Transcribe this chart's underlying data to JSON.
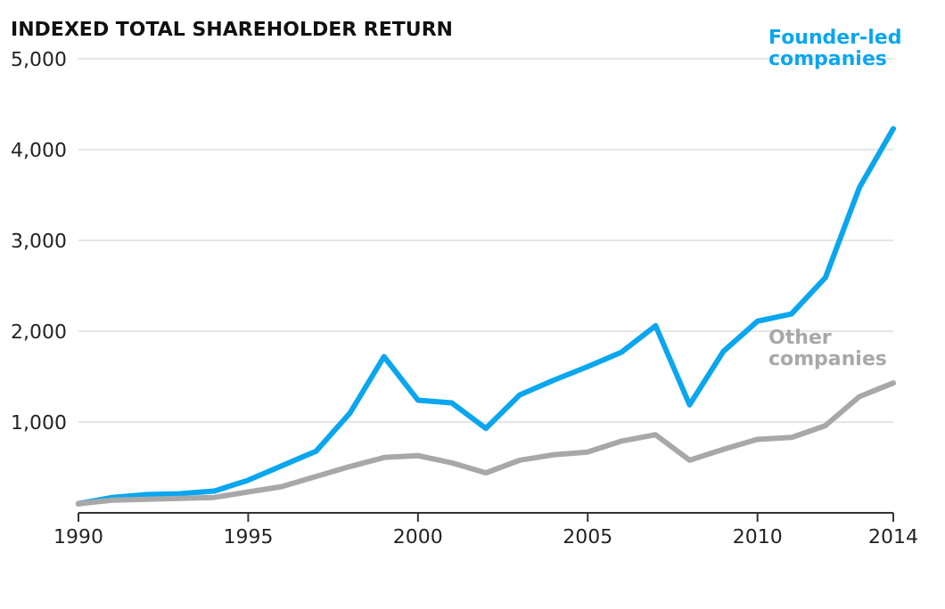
{
  "chart_data": {
    "type": "line",
    "title": "INDEXED TOTAL SHAREHOLDER RETURN",
    "x": [
      1990,
      1991,
      1992,
      1993,
      1994,
      1995,
      1996,
      1997,
      1998,
      1999,
      2000,
      2001,
      2002,
      2003,
      2004,
      2005,
      2006,
      2007,
      2008,
      2009,
      2010,
      2011,
      2012,
      2013,
      2014
    ],
    "series": [
      {
        "name": "Founder-led companies",
        "color": "#0aa6ef",
        "values": [
          100,
          170,
          200,
          210,
          240,
          360,
          520,
          680,
          1100,
          1720,
          1240,
          1210,
          930,
          1300,
          1460,
          1610,
          1770,
          2060,
          1190,
          1780,
          2110,
          2190,
          2590,
          3580,
          4230
        ]
      },
      {
        "name": "Other companies",
        "color": "#a8a8a8",
        "values": [
          100,
          140,
          150,
          160,
          170,
          230,
          290,
          400,
          510,
          610,
          630,
          550,
          440,
          580,
          640,
          670,
          790,
          860,
          580,
          700,
          810,
          830,
          960,
          1280,
          1430
        ]
      }
    ],
    "xlim": [
      1990,
      2014
    ],
    "xticks": [
      1990,
      1995,
      2000,
      2005,
      2010,
      2014
    ],
    "ylim": [
      0,
      5000
    ],
    "yticks": [
      {
        "value": 0,
        "label": null
      },
      {
        "value": 1000,
        "label": "1,000"
      },
      {
        "value": 2000,
        "label": "2,000"
      },
      {
        "value": 3000,
        "label": "3,000"
      },
      {
        "value": 4000,
        "label": "4,000"
      },
      {
        "value": 5000,
        "label": "5,000"
      }
    ],
    "grid": "y",
    "legend": false,
    "marker": "none",
    "line_style": "solid"
  }
}
